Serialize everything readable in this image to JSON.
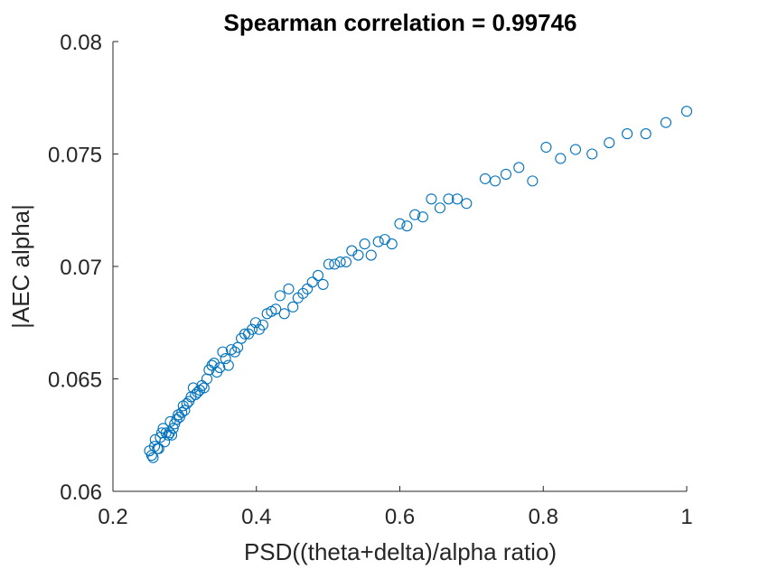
{
  "chart_data": {
    "type": "scatter",
    "title": "Spearman correlation = 0.99746",
    "xlabel": "PSD((theta+delta)/alpha ratio)",
    "ylabel": "|AEC alpha|",
    "xlim": [
      0.2,
      1.0
    ],
    "ylim": [
      0.06,
      0.08
    ],
    "xticks": [
      0.2,
      0.4,
      0.6,
      0.8,
      1.0
    ],
    "xtick_labels": [
      "0.2",
      "0.4",
      "0.6",
      "0.8",
      "1"
    ],
    "yticks": [
      0.06,
      0.065,
      0.07,
      0.075,
      0.08
    ],
    "ytick_labels": [
      "0.06",
      "0.065",
      "0.07",
      "0.075",
      "0.08"
    ],
    "grid": false,
    "marker_color": "#0072BD",
    "points": [
      [
        0.251,
        0.0618
      ],
      [
        0.254,
        0.0616
      ],
      [
        0.256,
        0.0615
      ],
      [
        0.258,
        0.062
      ],
      [
        0.259,
        0.0623
      ],
      [
        0.262,
        0.0619
      ],
      [
        0.264,
        0.0619
      ],
      [
        0.266,
        0.0624
      ],
      [
        0.268,
        0.0626
      ],
      [
        0.27,
        0.0628
      ],
      [
        0.272,
        0.0622
      ],
      [
        0.274,
        0.0626
      ],
      [
        0.277,
        0.0625
      ],
      [
        0.279,
        0.0626
      ],
      [
        0.28,
        0.0631
      ],
      [
        0.282,
        0.0625
      ],
      [
        0.284,
        0.0628
      ],
      [
        0.286,
        0.063
      ],
      [
        0.289,
        0.0632
      ],
      [
        0.291,
        0.0634
      ],
      [
        0.293,
        0.0633
      ],
      [
        0.296,
        0.0635
      ],
      [
        0.298,
        0.0638
      ],
      [
        0.3,
        0.0636
      ],
      [
        0.303,
        0.0639
      ],
      [
        0.306,
        0.064
      ],
      [
        0.309,
        0.0642
      ],
      [
        0.312,
        0.0646
      ],
      [
        0.315,
        0.0643
      ],
      [
        0.318,
        0.0644
      ],
      [
        0.321,
        0.0645
      ],
      [
        0.324,
        0.0647
      ],
      [
        0.327,
        0.0646
      ],
      [
        0.331,
        0.065
      ],
      [
        0.334,
        0.0654
      ],
      [
        0.338,
        0.0656
      ],
      [
        0.341,
        0.0657
      ],
      [
        0.345,
        0.0653
      ],
      [
        0.349,
        0.0655
      ],
      [
        0.353,
        0.0662
      ],
      [
        0.357,
        0.0659
      ],
      [
        0.361,
        0.0656
      ],
      [
        0.365,
        0.0663
      ],
      [
        0.37,
        0.0662
      ],
      [
        0.374,
        0.0664
      ],
      [
        0.379,
        0.0668
      ],
      [
        0.384,
        0.067
      ],
      [
        0.389,
        0.067
      ],
      [
        0.394,
        0.0672
      ],
      [
        0.399,
        0.0675
      ],
      [
        0.404,
        0.0672
      ],
      [
        0.409,
        0.0674
      ],
      [
        0.415,
        0.0679
      ],
      [
        0.421,
        0.068
      ],
      [
        0.427,
        0.0681
      ],
      [
        0.433,
        0.0687
      ],
      [
        0.439,
        0.0679
      ],
      [
        0.445,
        0.069
      ],
      [
        0.451,
        0.0682
      ],
      [
        0.458,
        0.0686
      ],
      [
        0.465,
        0.0688
      ],
      [
        0.471,
        0.069
      ],
      [
        0.478,
        0.0693
      ],
      [
        0.486,
        0.0696
      ],
      [
        0.493,
        0.0692
      ],
      [
        0.501,
        0.0701
      ],
      [
        0.509,
        0.0701
      ],
      [
        0.517,
        0.0702
      ],
      [
        0.525,
        0.0702
      ],
      [
        0.533,
        0.0707
      ],
      [
        0.542,
        0.0705
      ],
      [
        0.551,
        0.071
      ],
      [
        0.56,
        0.0705
      ],
      [
        0.57,
        0.0711
      ],
      [
        0.579,
        0.0712
      ],
      [
        0.589,
        0.071
      ],
      [
        0.6,
        0.0719
      ],
      [
        0.61,
        0.0718
      ],
      [
        0.621,
        0.0723
      ],
      [
        0.632,
        0.0722
      ],
      [
        0.644,
        0.073
      ],
      [
        0.656,
        0.0726
      ],
      [
        0.668,
        0.073
      ],
      [
        0.68,
        0.073
      ],
      [
        0.693,
        0.0728
      ],
      [
        0.719,
        0.0739
      ],
      [
        0.733,
        0.0738
      ],
      [
        0.748,
        0.0741
      ],
      [
        0.766,
        0.0744
      ],
      [
        0.785,
        0.0738
      ],
      [
        0.804,
        0.0753
      ],
      [
        0.824,
        0.0748
      ],
      [
        0.845,
        0.0752
      ],
      [
        0.868,
        0.075
      ],
      [
        0.892,
        0.0755
      ],
      [
        0.917,
        0.0759
      ],
      [
        0.943,
        0.0759
      ],
      [
        0.971,
        0.0764
      ],
      [
        1.0,
        0.0769
      ]
    ]
  }
}
